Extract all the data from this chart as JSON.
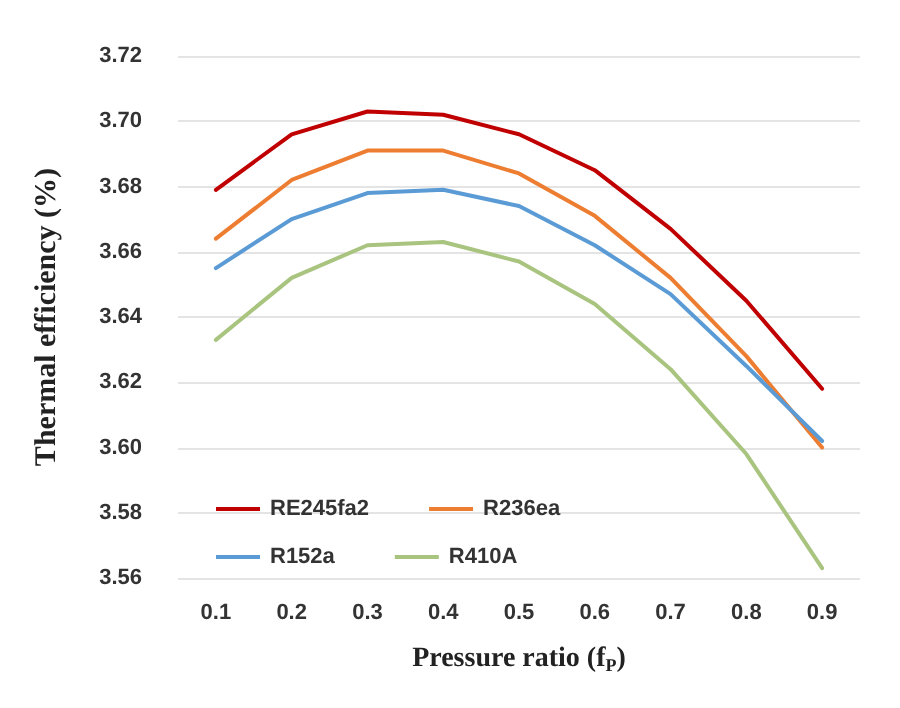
{
  "chart_data": {
    "type": "line",
    "xlabel": "Pressure ratio (f$_{P}$)",
    "ylabel": "Thermal efficiency (%)",
    "categories": [
      "0.1",
      "0.2",
      "0.3",
      "0.4",
      "0.5",
      "0.6",
      "0.7",
      "0.8",
      "0.9"
    ],
    "series": [
      {
        "name": "RE245fa2",
        "color": "#c00000",
        "values": [
          3.679,
          3.696,
          3.703,
          3.702,
          3.696,
          3.685,
          3.667,
          3.645,
          3.618
        ]
      },
      {
        "name": "R236ea",
        "color": "#ed7d31",
        "values": [
          3.664,
          3.682,
          3.691,
          3.691,
          3.684,
          3.671,
          3.652,
          3.628,
          3.6
        ]
      },
      {
        "name": "R152a",
        "color": "#5b9bd5",
        "values": [
          3.655,
          3.67,
          3.678,
          3.679,
          3.674,
          3.662,
          3.647,
          3.625,
          3.602
        ]
      },
      {
        "name": "R410A",
        "color": "#a9c47f",
        "values": [
          3.633,
          3.652,
          3.662,
          3.663,
          3.657,
          3.644,
          3.624,
          3.598,
          3.563
        ]
      }
    ],
    "ylim": [
      3.56,
      3.72
    ],
    "yticks": [
      3.56,
      3.58,
      {
        "value": 3.6,
        "label": "3.60"
      },
      3.62,
      3.64,
      3.66,
      3.68,
      {
        "value": 3.7,
        "label": "3.70"
      },
      3.72
    ],
    "grid": "y",
    "legend": "bottom left",
    "marker": "none",
    "line_style": "solid"
  }
}
